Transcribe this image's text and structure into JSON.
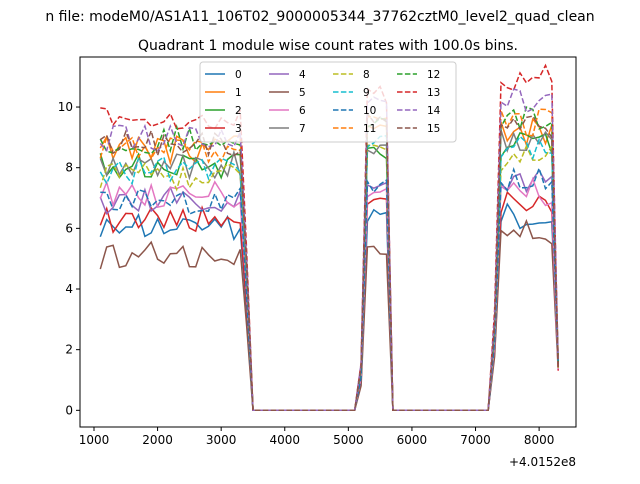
{
  "chart_data": {
    "type": "line",
    "suptitle": "n file: modeM0/AS1A11_106T02_9000005344_37762cztM0_level2_quad_clean",
    "title": "Quadrant 1 module wise count rates with 100.0s bins.",
    "xlabel": "",
    "ylabel": "",
    "x_offset_label": "+4.0152e8",
    "xlim": [
      780,
      8580
    ],
    "ylim": [
      -0.55,
      11.65
    ],
    "xticks": [
      1000,
      2000,
      3000,
      4000,
      5000,
      6000,
      7000,
      8000
    ],
    "yticks": [
      0,
      2,
      4,
      6,
      8,
      10
    ],
    "grid": false,
    "legend_position": "top-center",
    "legend_columns": 4,
    "series": [
      {
        "name": "0",
        "color": "#1f77b4",
        "style": "solid",
        "base": 6.0,
        "peak2": 6.5,
        "peak3": 6.4
      },
      {
        "name": "1",
        "color": "#ff7f0e",
        "style": "solid",
        "base": 8.6,
        "peak2": 9.2,
        "peak3": 9.2
      },
      {
        "name": "2",
        "color": "#2ca02c",
        "style": "solid",
        "base": 8.1,
        "peak2": 8.6,
        "peak3": 8.8
      },
      {
        "name": "3",
        "color": "#d62728",
        "style": "solid",
        "base": 6.3,
        "peak2": 6.9,
        "peak3": 6.8
      },
      {
        "name": "4",
        "color": "#9467bd",
        "style": "solid",
        "base": 6.9,
        "peak2": 7.3,
        "peak3": 7.6
      },
      {
        "name": "5",
        "color": "#8c564b",
        "style": "solid",
        "base": 5.1,
        "peak2": 5.4,
        "peak3": 5.9
      },
      {
        "name": "6",
        "color": "#e377c2",
        "style": "solid",
        "base": 7.1,
        "peak2": 7.2,
        "peak3": 7.2
      },
      {
        "name": "7",
        "color": "#7f7f7f",
        "style": "solid",
        "base": 8.1,
        "peak2": 8.5,
        "peak3": 8.9
      },
      {
        "name": "8",
        "color": "#bcbd22",
        "style": "dashed",
        "base": 7.7,
        "peak2": 8.8,
        "peak3": 8.3
      },
      {
        "name": "9",
        "color": "#17becf",
        "style": "dashed",
        "base": 7.9,
        "peak2": 8.9,
        "peak3": 8.6
      },
      {
        "name": "10",
        "color": "#1f77b4",
        "style": "dashed",
        "base": 6.9,
        "peak2": 7.3,
        "peak3": 7.6
      },
      {
        "name": "11",
        "color": "#ff7f0e",
        "style": "dashed",
        "base": 8.6,
        "peak2": 9.8,
        "peak3": 9.5
      },
      {
        "name": "12",
        "color": "#2ca02c",
        "style": "dashed",
        "base": 8.9,
        "peak2": 9.6,
        "peak3": 9.7
      },
      {
        "name": "13",
        "color": "#d62728",
        "style": "dashed",
        "base": 9.6,
        "peak2": 10.4,
        "peak3": 11.0
      },
      {
        "name": "14",
        "color": "#9467bd",
        "style": "dashed",
        "base": 9.0,
        "peak2": 10.3,
        "peak3": 10.2
      },
      {
        "name": "15",
        "color": "#8c564b",
        "style": "dashed",
        "base": 8.8,
        "peak2": 9.5,
        "peak3": 9.3
      }
    ]
  }
}
